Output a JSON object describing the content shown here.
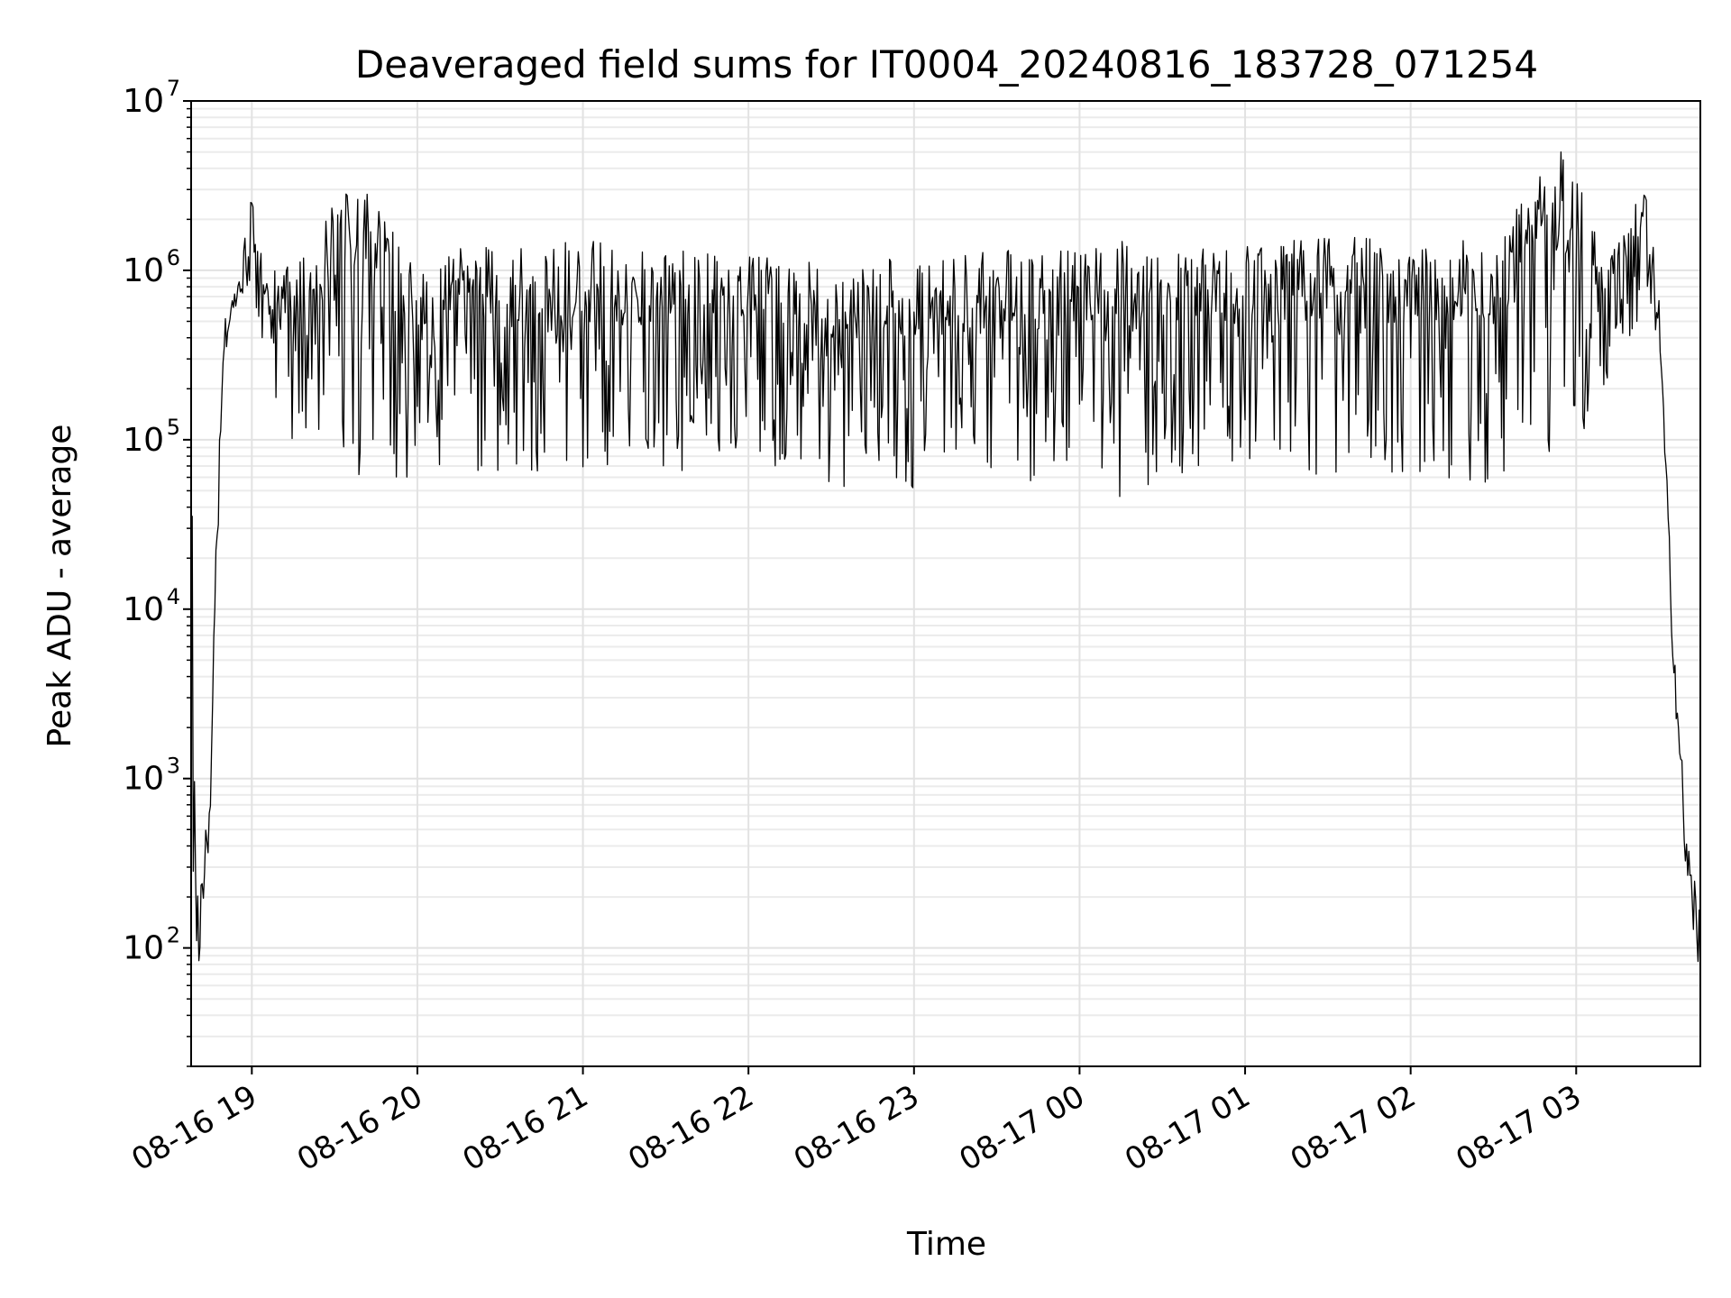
{
  "chart_data": {
    "type": "line",
    "title": "Deaveraged field sums for IT0004_20240816_183728_071254",
    "xlabel": "Time",
    "ylabel": "Peak ADU - average",
    "y_scale": "log",
    "ylim": [
      20,
      10000000
    ],
    "xlim": [
      "2024-08-16 18:38",
      "2024-08-17 03:45"
    ],
    "grid": true,
    "y_ticks": [
      {
        "value": 100,
        "mantissa": "10",
        "exp": "2"
      },
      {
        "value": 1000,
        "mantissa": "10",
        "exp": "3"
      },
      {
        "value": 10000,
        "mantissa": "10",
        "exp": "4"
      },
      {
        "value": 100000,
        "mantissa": "10",
        "exp": "5"
      },
      {
        "value": 1000000,
        "mantissa": "10",
        "exp": "6"
      },
      {
        "value": 10000000,
        "mantissa": "10",
        "exp": "7"
      }
    ],
    "x_ticks": [
      {
        "time": "2024-08-16 19:00",
        "label": "08-16 19"
      },
      {
        "time": "2024-08-16 20:00",
        "label": "08-16 20"
      },
      {
        "time": "2024-08-16 21:00",
        "label": "08-16 21"
      },
      {
        "time": "2024-08-16 22:00",
        "label": "08-16 22"
      },
      {
        "time": "2024-08-16 23:00",
        "label": "08-16 23"
      },
      {
        "time": "2024-08-17 00:00",
        "label": "08-17 00"
      },
      {
        "time": "2024-08-17 01:00",
        "label": "08-17 01"
      },
      {
        "time": "2024-08-17 02:00",
        "label": "08-17 02"
      },
      {
        "time": "2024-08-17 03:00",
        "label": "08-17 03"
      }
    ],
    "series": [
      {
        "color": "#000000",
        "envelope_points": [
          {
            "time": "2024-08-16 18:38",
            "upper": 150000,
            "lower": 25
          },
          {
            "time": "2024-08-16 18:40",
            "upper": 200,
            "lower": 35
          },
          {
            "time": "2024-08-16 18:42",
            "upper": 350,
            "lower": 150
          },
          {
            "time": "2024-08-16 18:45",
            "upper": 800,
            "lower": 500
          },
          {
            "time": "2024-08-16 18:47",
            "upper": 30000,
            "lower": 10000
          },
          {
            "time": "2024-08-16 18:50",
            "upper": 500000,
            "lower": 300000
          },
          {
            "time": "2024-08-16 18:55",
            "upper": 900000,
            "lower": 700000
          },
          {
            "time": "2024-08-16 19:00",
            "upper": 2900000,
            "lower": 800000
          },
          {
            "time": "2024-08-16 19:05",
            "upper": 1000000,
            "lower": 300000
          },
          {
            "time": "2024-08-16 19:10",
            "upper": 1000000,
            "lower": 120000
          },
          {
            "time": "2024-08-16 19:20",
            "upper": 1300000,
            "lower": 80000
          },
          {
            "time": "2024-08-16 19:35",
            "upper": 3800000,
            "lower": 60000
          },
          {
            "time": "2024-08-16 20:00",
            "upper": 1300000,
            "lower": 60000
          },
          {
            "time": "2024-08-16 20:30",
            "upper": 1400000,
            "lower": 55000
          },
          {
            "time": "2024-08-16 21:00",
            "upper": 1500000,
            "lower": 65000
          },
          {
            "time": "2024-08-16 21:30",
            "upper": 1400000,
            "lower": 55000
          },
          {
            "time": "2024-08-16 22:00",
            "upper": 1300000,
            "lower": 70000
          },
          {
            "time": "2024-08-16 22:30",
            "upper": 1100000,
            "lower": 45000
          },
          {
            "time": "2024-08-16 23:00",
            "upper": 1200000,
            "lower": 50000
          },
          {
            "time": "2024-08-16 23:30",
            "upper": 1300000,
            "lower": 55000
          },
          {
            "time": "2024-08-17 00:00",
            "upper": 1400000,
            "lower": 60000
          },
          {
            "time": "2024-08-17 00:15",
            "upper": 1500000,
            "lower": 35000
          },
          {
            "time": "2024-08-17 00:30",
            "upper": 1500000,
            "lower": 60000
          },
          {
            "time": "2024-08-17 01:00",
            "upper": 1400000,
            "lower": 65000
          },
          {
            "time": "2024-08-17 01:30",
            "upper": 1600000,
            "lower": 60000
          },
          {
            "time": "2024-08-17 02:00",
            "upper": 1500000,
            "lower": 60000
          },
          {
            "time": "2024-08-17 02:30",
            "upper": 1500000,
            "lower": 55000
          },
          {
            "time": "2024-08-17 02:57",
            "upper": 6000000,
            "lower": 60000
          },
          {
            "time": "2024-08-17 03:10",
            "upper": 1200000,
            "lower": 200000
          },
          {
            "time": "2024-08-17 03:25",
            "upper": 3700000,
            "lower": 500000
          },
          {
            "time": "2024-08-17 03:30",
            "upper": 700000,
            "lower": 400000
          },
          {
            "time": "2024-08-17 03:35",
            "upper": 10000,
            "lower": 5000
          },
          {
            "time": "2024-08-17 03:40",
            "upper": 500,
            "lower": 200
          },
          {
            "time": "2024-08-17 03:45",
            "upper": 200,
            "lower": 60
          }
        ]
      }
    ]
  }
}
